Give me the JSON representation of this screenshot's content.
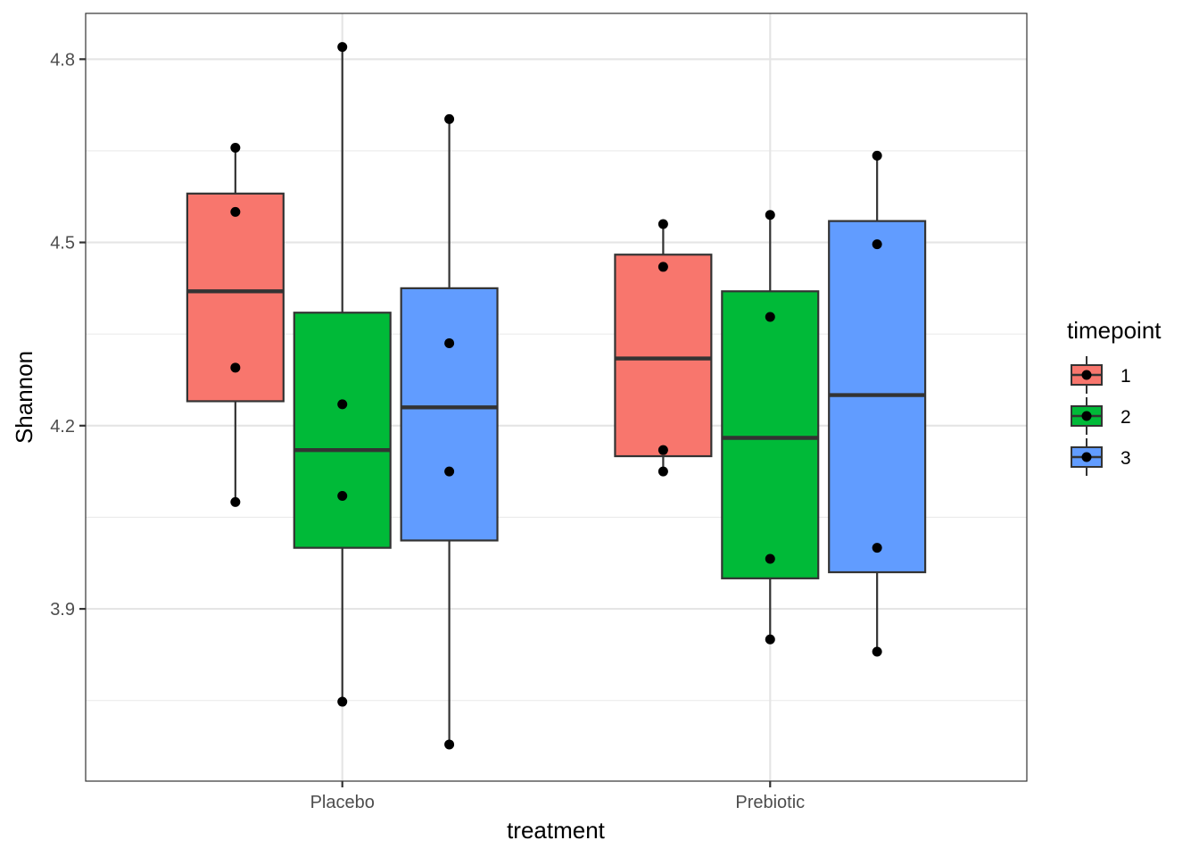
{
  "chart_data": {
    "type": "boxplot",
    "title": "",
    "xlabel": "treatment",
    "ylabel": "Shannon",
    "ylim": [
      3.618,
      4.875
    ],
    "y_ticks": [
      3.9,
      4.2,
      4.5,
      4.8
    ],
    "y_tick_labels": [
      "3.9",
      "4.2",
      "4.5",
      "4.8"
    ],
    "y_minor_ticks": [
      3.75,
      4.05,
      4.35,
      4.65
    ],
    "grid": true,
    "categories": [
      "Placebo",
      "Prebiotic"
    ],
    "legend": {
      "title": "timepoint",
      "position": "right",
      "entries": [
        "1",
        "2",
        "3"
      ]
    },
    "series": [
      {
        "name": "1",
        "color": "#F8766D",
        "boxes": [
          {
            "category": "Placebo",
            "whisker_low": 4.075,
            "q1": 4.24,
            "median": 4.42,
            "q3": 4.58,
            "whisker_high": 4.655,
            "points": [
              4.655,
              4.55,
              4.295,
              4.075
            ]
          },
          {
            "category": "Prebiotic",
            "whisker_low": 4.125,
            "q1": 4.15,
            "median": 4.31,
            "q3": 4.48,
            "whisker_high": 4.53,
            "points": [
              4.53,
              4.46,
              4.16,
              4.125
            ]
          }
        ]
      },
      {
        "name": "2",
        "color": "#00BA38",
        "boxes": [
          {
            "category": "Placebo",
            "whisker_low": 3.748,
            "q1": 4.0,
            "median": 4.16,
            "q3": 4.385,
            "whisker_high": 4.82,
            "points": [
              4.82,
              4.235,
              4.085,
              3.748
            ]
          },
          {
            "category": "Prebiotic",
            "whisker_low": 3.85,
            "q1": 3.95,
            "median": 4.18,
            "q3": 4.42,
            "whisker_high": 4.545,
            "points": [
              4.545,
              4.378,
              3.982,
              3.85
            ]
          }
        ]
      },
      {
        "name": "3",
        "color": "#619CFF",
        "boxes": [
          {
            "category": "Placebo",
            "whisker_low": 3.678,
            "q1": 4.012,
            "median": 4.23,
            "q3": 4.425,
            "whisker_high": 4.702,
            "points": [
              4.702,
              4.335,
              4.125,
              3.678
            ]
          },
          {
            "category": "Prebiotic",
            "whisker_low": 3.83,
            "q1": 3.96,
            "median": 4.25,
            "q3": 4.535,
            "whisker_high": 4.642,
            "points": [
              4.642,
              4.497,
              4.0,
              3.83
            ]
          }
        ]
      }
    ]
  }
}
